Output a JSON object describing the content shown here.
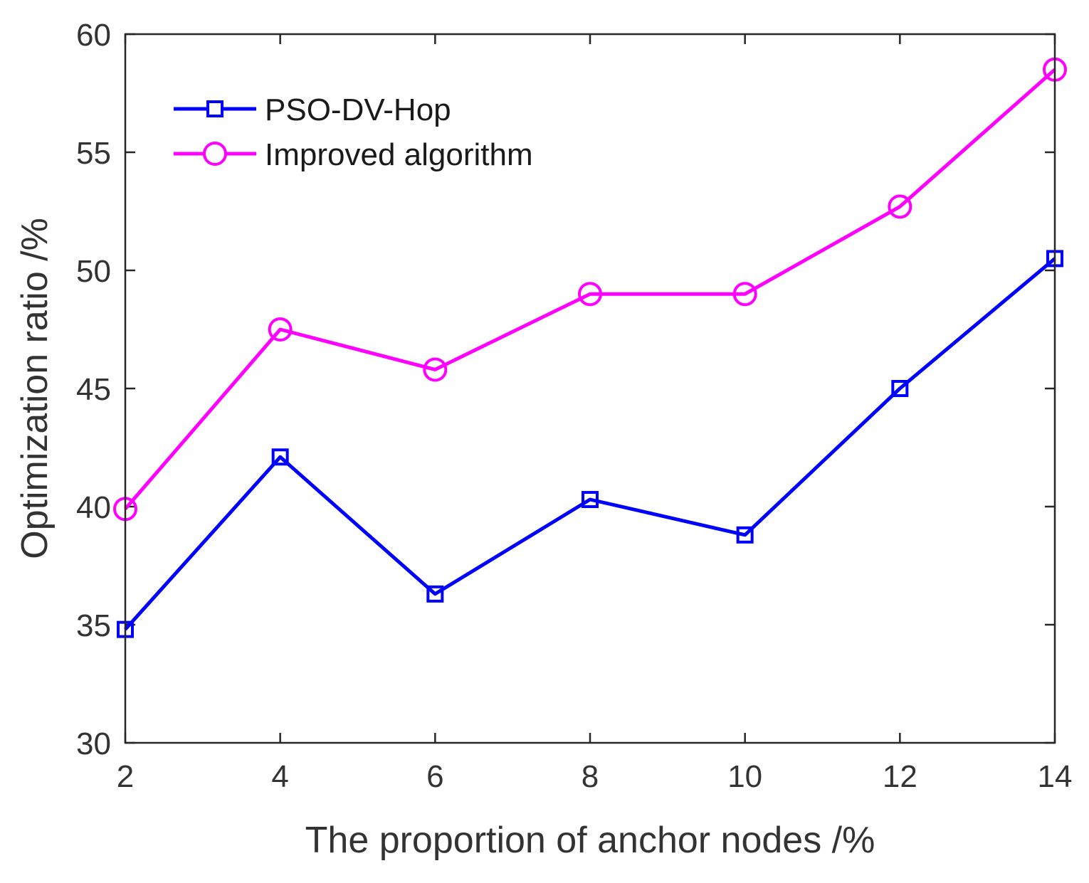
{
  "chart_data": {
    "type": "line",
    "title": "",
    "xlabel": "The proportion of anchor nodes /%",
    "ylabel": "Optimization ratio /%",
    "xlim": [
      2,
      14
    ],
    "ylim": [
      30,
      60
    ],
    "xticks": [
      2,
      4,
      6,
      8,
      10,
      12,
      14
    ],
    "yticks": [
      30,
      35,
      40,
      45,
      50,
      55,
      60
    ],
    "grid": false,
    "legend_position": "top-left",
    "x": [
      2,
      4,
      6,
      8,
      10,
      12,
      14
    ],
    "series": [
      {
        "name": "PSO-DV-Hop",
        "color": "#0000ff",
        "marker": "square",
        "values": [
          34.8,
          42.1,
          36.3,
          40.3,
          38.8,
          45.0,
          50.5
        ]
      },
      {
        "name": "Improved algorithm",
        "color": "#ff00ff",
        "marker": "circle",
        "values": [
          39.9,
          47.5,
          45.8,
          49.0,
          49.0,
          52.7,
          58.5
        ]
      }
    ]
  }
}
